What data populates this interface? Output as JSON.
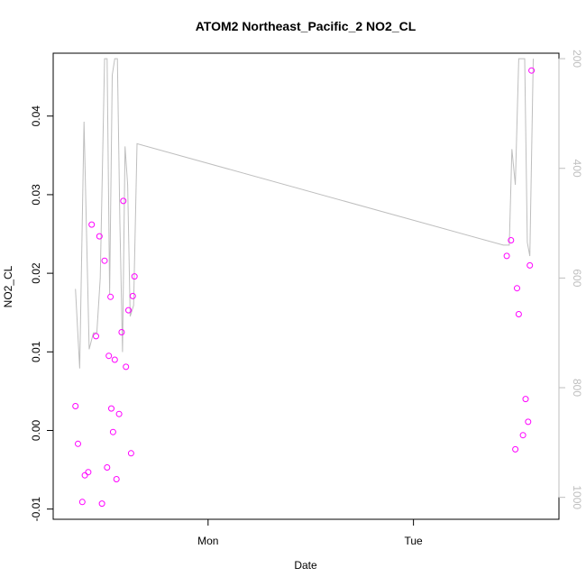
{
  "chart_data": {
    "type": "scatter",
    "title": "ATOM2 Northeast_Pacific_2 NO2_CL",
    "xlabel": "Date",
    "ylabel": "NO2_CL",
    "x_ticks": [
      "Mon",
      "Tue"
    ],
    "y_ticks": [
      "-0.01",
      "0.00",
      "0.01",
      "0.02",
      "0.03",
      "0.04"
    ],
    "y_tick_values": [
      -0.01,
      0.0,
      0.01,
      0.02,
      0.03,
      0.04
    ],
    "ylim": [
      -0.0113,
      0.048
    ],
    "xlim_hours": [
      -18.1,
      41.0
    ],
    "y2_ticks": [
      "200",
      "400",
      "600",
      "800",
      "1000"
    ],
    "y2_tick_values": [
      200,
      400,
      600,
      800,
      1000
    ],
    "y2lim": [
      1040,
      190
    ],
    "y2_reversed": true,
    "grid": false,
    "legend": "none",
    "colors": {
      "points": "#ff00ff",
      "pressure_line": "#bebebe",
      "axes": "#000000"
    },
    "series": [
      {
        "role": "NO2_CL",
        "marker": "open-circle",
        "x_hours": [
          -15.5,
          -15.2,
          -14.7,
          -14.4,
          -14.0,
          -13.6,
          -13.1,
          -12.7,
          -12.4,
          -12.1,
          -11.8,
          -11.6,
          -11.4,
          -11.3,
          -11.1,
          -10.9,
          -10.7,
          -10.4,
          -10.1,
          -9.9,
          -9.6,
          -9.3,
          -9.0,
          -8.8,
          -8.6,
          34.9,
          35.4,
          35.9,
          36.1,
          36.3,
          36.8,
          37.1,
          37.4,
          37.6,
          37.8
        ],
        "y": [
          0.0031,
          -0.0017,
          -0.0091,
          -0.0057,
          -0.0053,
          0.0262,
          0.012,
          0.0247,
          -0.0093,
          0.0216,
          -0.0047,
          0.0095,
          0.017,
          0.0028,
          -0.0002,
          0.009,
          -0.0062,
          0.0021,
          0.0125,
          0.0292,
          0.0081,
          0.0153,
          -0.0029,
          0.0171,
          0.0196,
          0.0222,
          0.0242,
          -0.0024,
          0.0181,
          0.0148,
          -0.0006,
          0.004,
          0.0011,
          0.021,
          0.0458
        ]
      },
      {
        "role": "pressure",
        "axis": "right",
        "x_hours": [
          -15.5,
          -15.0,
          -14.5,
          -13.9,
          -13.4,
          -13.0,
          -12.6,
          -12.1,
          -11.8,
          -11.5,
          -11.2,
          -10.9,
          -10.6,
          -10.3,
          -10.0,
          -9.7,
          -9.4,
          -9.1,
          -8.7,
          -8.3,
          34.5,
          34.9,
          35.2,
          35.5,
          35.9,
          36.3,
          36.6,
          37.0,
          37.3,
          37.6,
          38.0
        ],
        "y": [
          620,
          765,
          315,
          730,
          700,
          700,
          600,
          200,
          200,
          630,
          230,
          200,
          200,
          500,
          735,
          360,
          430,
          670,
          650,
          355,
          540,
          540,
          540,
          365,
          430,
          200,
          200,
          200,
          535,
          560,
          200
        ]
      }
    ]
  }
}
